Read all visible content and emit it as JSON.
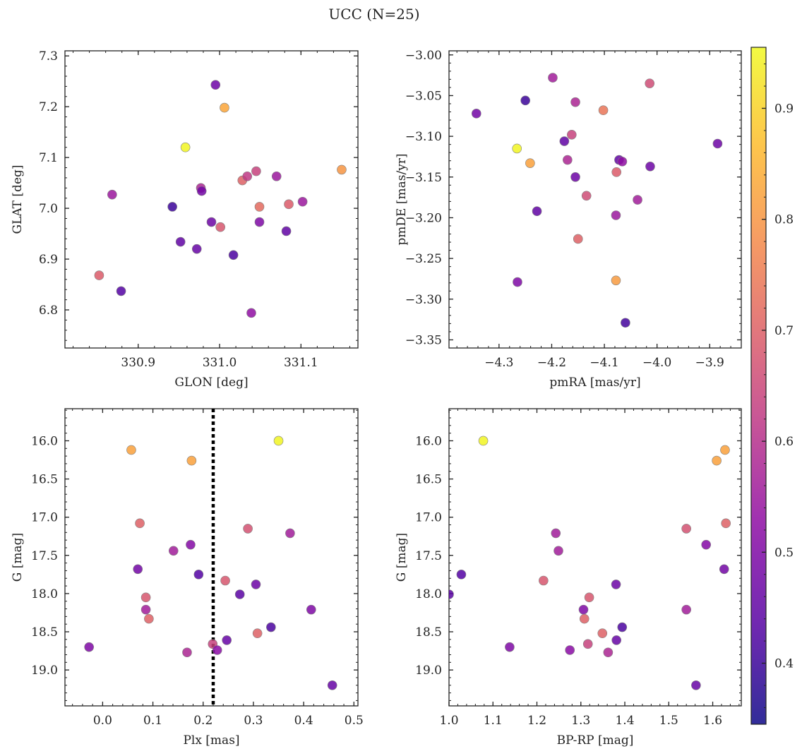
{
  "figure": {
    "title": "UCC (N=25)"
  },
  "colorbar": {
    "colormap": "plasma",
    "range": [
      0.345,
      0.955
    ],
    "ticks": [
      0.4,
      0.5,
      0.6,
      0.7,
      0.8,
      0.9
    ],
    "tick_labels": [
      "0.4",
      "0.5",
      "0.6",
      "0.7",
      "0.8",
      "0.9"
    ],
    "marker_alpha": 0.85
  },
  "chart_data": [
    {
      "type": "scatter",
      "xlabel": "GLON [deg]",
      "ylabel": "GLAT [deg]",
      "xlim": [
        330.81,
        331.17
      ],
      "ylim": [
        6.725,
        7.31
      ],
      "xticks": [
        330.9,
        331.0,
        331.1
      ],
      "xtick_labels": [
        "330.9",
        "331.0",
        "331.1"
      ],
      "yticks": [
        6.8,
        6.9,
        7.0,
        7.1,
        7.2,
        7.3
      ],
      "ytick_labels": [
        "6.8",
        "6.9",
        "7.0",
        "7.1",
        "7.2",
        "7.3"
      ],
      "points": [
        {
          "x": 330.868,
          "y": 7.027,
          "c": 0.55
        },
        {
          "x": 330.852,
          "y": 6.868,
          "c": 0.69
        },
        {
          "x": 330.879,
          "y": 6.837,
          "c": 0.43
        },
        {
          "x": 330.942,
          "y": 7.003,
          "c": 0.4
        },
        {
          "x": 330.952,
          "y": 6.934,
          "c": 0.45
        },
        {
          "x": 330.958,
          "y": 7.12,
          "c": 0.95
        },
        {
          "x": 330.972,
          "y": 6.92,
          "c": 0.46
        },
        {
          "x": 330.977,
          "y": 7.04,
          "c": 0.58
        },
        {
          "x": 330.978,
          "y": 7.034,
          "c": 0.48
        },
        {
          "x": 330.99,
          "y": 6.973,
          "c": 0.47
        },
        {
          "x": 330.995,
          "y": 7.243,
          "c": 0.47
        },
        {
          "x": 331.001,
          "y": 6.963,
          "c": 0.68
        },
        {
          "x": 331.006,
          "y": 7.198,
          "c": 0.83
        },
        {
          "x": 331.017,
          "y": 6.908,
          "c": 0.42
        },
        {
          "x": 331.028,
          "y": 7.055,
          "c": 0.7
        },
        {
          "x": 331.034,
          "y": 7.063,
          "c": 0.62
        },
        {
          "x": 331.039,
          "y": 6.794,
          "c": 0.53
        },
        {
          "x": 331.045,
          "y": 7.073,
          "c": 0.64
        },
        {
          "x": 331.049,
          "y": 7.003,
          "c": 0.72
        },
        {
          "x": 331.049,
          "y": 6.973,
          "c": 0.5
        },
        {
          "x": 331.07,
          "y": 7.063,
          "c": 0.55
        },
        {
          "x": 331.082,
          "y": 6.955,
          "c": 0.45
        },
        {
          "x": 331.085,
          "y": 7.008,
          "c": 0.69
        },
        {
          "x": 331.102,
          "y": 7.013,
          "c": 0.55
        },
        {
          "x": 331.15,
          "y": 7.076,
          "c": 0.8
        }
      ]
    },
    {
      "type": "scatter",
      "xlabel": "pmRA [mas/yr]",
      "ylabel": "pmDE [mas/yr]",
      "xlim": [
        -4.395,
        -3.84
      ],
      "ylim": [
        -3.36,
        -2.995
      ],
      "xticks": [
        -4.3,
        -4.2,
        -4.1,
        -4.0,
        -3.9
      ],
      "xtick_labels": [
        "−4.3",
        "−4.2",
        "−4.1",
        "−4.0",
        "−3.9"
      ],
      "yticks": [
        -3.35,
        -3.3,
        -3.25,
        -3.2,
        -3.15,
        -3.1,
        -3.05,
        -3.0
      ],
      "ytick_labels": [
        "−3.35",
        "−3.30",
        "−3.25",
        "−3.20",
        "−3.15",
        "−3.10",
        "−3.05",
        "−3.00"
      ],
      "points": [
        {
          "x": -4.343,
          "y": -3.072,
          "c": 0.48
        },
        {
          "x": -4.266,
          "y": -3.115,
          "c": 0.95
        },
        {
          "x": -4.265,
          "y": -3.279,
          "c": 0.5
        },
        {
          "x": -4.25,
          "y": -3.056,
          "c": 0.4
        },
        {
          "x": -4.241,
          "y": -3.133,
          "c": 0.82
        },
        {
          "x": -4.228,
          "y": -3.192,
          "c": 0.45
        },
        {
          "x": -4.198,
          "y": -3.028,
          "c": 0.56
        },
        {
          "x": -4.176,
          "y": -3.106,
          "c": 0.45
        },
        {
          "x": -4.17,
          "y": -3.129,
          "c": 0.58
        },
        {
          "x": -4.162,
          "y": -3.098,
          "c": 0.64
        },
        {
          "x": -4.155,
          "y": -3.15,
          "c": 0.47
        },
        {
          "x": -4.155,
          "y": -3.058,
          "c": 0.58
        },
        {
          "x": -4.15,
          "y": -3.226,
          "c": 0.7
        },
        {
          "x": -4.134,
          "y": -3.173,
          "c": 0.66
        },
        {
          "x": -4.102,
          "y": -3.068,
          "c": 0.74
        },
        {
          "x": -4.078,
          "y": -3.277,
          "c": 0.81
        },
        {
          "x": -4.077,
          "y": -3.144,
          "c": 0.69
        },
        {
          "x": -4.078,
          "y": -3.197,
          "c": 0.55
        },
        {
          "x": -4.072,
          "y": -3.129,
          "c": 0.45
        },
        {
          "x": -4.066,
          "y": -3.131,
          "c": 0.53
        },
        {
          "x": -4.06,
          "y": -3.329,
          "c": 0.41
        },
        {
          "x": -4.037,
          "y": -3.178,
          "c": 0.56
        },
        {
          "x": -4.013,
          "y": -3.137,
          "c": 0.47
        },
        {
          "x": -4.014,
          "y": -3.035,
          "c": 0.66
        },
        {
          "x": -3.885,
          "y": -3.109,
          "c": 0.47
        }
      ]
    },
    {
      "type": "scatter",
      "xlabel": "Plx [mas]",
      "ylabel": "G [mag]",
      "xlim": [
        -0.075,
        0.508
      ],
      "ylim": [
        19.47,
        15.58
      ],
      "y_inverted": true,
      "reference_line_x": 0.22,
      "xticks": [
        0.0,
        0.1,
        0.2,
        0.3,
        0.4,
        0.5
      ],
      "xtick_labels": [
        "0.0",
        "0.1",
        "0.2",
        "0.3",
        "0.4",
        "0.5"
      ],
      "yticks": [
        16.0,
        16.5,
        17.0,
        17.5,
        18.0,
        18.5,
        19.0
      ],
      "ytick_labels": [
        "16.0",
        "16.5",
        "17.0",
        "17.5",
        "18.0",
        "18.5",
        "19.0"
      ],
      "points": [
        {
          "x": -0.027,
          "y": 18.7,
          "c": 0.5
        },
        {
          "x": 0.057,
          "y": 16.12,
          "c": 0.82
        },
        {
          "x": 0.074,
          "y": 17.08,
          "c": 0.7
        },
        {
          "x": 0.07,
          "y": 17.68,
          "c": 0.48
        },
        {
          "x": 0.086,
          "y": 18.05,
          "c": 0.68
        },
        {
          "x": 0.086,
          "y": 18.21,
          "c": 0.56
        },
        {
          "x": 0.092,
          "y": 18.33,
          "c": 0.7
        },
        {
          "x": 0.141,
          "y": 17.44,
          "c": 0.56
        },
        {
          "x": 0.168,
          "y": 18.77,
          "c": 0.58
        },
        {
          "x": 0.175,
          "y": 17.36,
          "c": 0.51
        },
        {
          "x": 0.177,
          "y": 16.26,
          "c": 0.82
        },
        {
          "x": 0.191,
          "y": 17.75,
          "c": 0.43
        },
        {
          "x": 0.219,
          "y": 18.66,
          "c": 0.64
        },
        {
          "x": 0.228,
          "y": 18.74,
          "c": 0.52
        },
        {
          "x": 0.244,
          "y": 17.83,
          "c": 0.68
        },
        {
          "x": 0.247,
          "y": 18.61,
          "c": 0.46
        },
        {
          "x": 0.273,
          "y": 18.01,
          "c": 0.44
        },
        {
          "x": 0.289,
          "y": 17.15,
          "c": 0.67
        },
        {
          "x": 0.305,
          "y": 17.88,
          "c": 0.47
        },
        {
          "x": 0.308,
          "y": 18.52,
          "c": 0.7
        },
        {
          "x": 0.335,
          "y": 18.44,
          "c": 0.42
        },
        {
          "x": 0.35,
          "y": 16.0,
          "c": 0.95
        },
        {
          "x": 0.373,
          "y": 17.21,
          "c": 0.56
        },
        {
          "x": 0.415,
          "y": 18.21,
          "c": 0.5
        },
        {
          "x": 0.457,
          "y": 19.2,
          "c": 0.46
        }
      ]
    },
    {
      "type": "scatter",
      "xlabel": "BP-RP [mag]",
      "ylabel": "G [mag]",
      "xlim": [
        1.0,
        1.665
      ],
      "ylim": [
        19.47,
        15.58
      ],
      "y_inverted": true,
      "xticks": [
        1.0,
        1.1,
        1.2,
        1.3,
        1.4,
        1.5,
        1.6
      ],
      "xtick_labels": [
        "1.0",
        "1.1",
        "1.2",
        "1.3",
        "1.4",
        "1.5",
        "1.6"
      ],
      "yticks": [
        16.0,
        16.5,
        17.0,
        17.5,
        18.0,
        18.5,
        19.0
      ],
      "ytick_labels": [
        "16.0",
        "16.5",
        "17.0",
        "17.5",
        "18.0",
        "18.5",
        "19.0"
      ],
      "points": [
        {
          "x": 1.028,
          "y": 17.75,
          "c": 0.43
        },
        {
          "x": 1.078,
          "y": 16.0,
          "c": 0.95
        },
        {
          "x": 1.138,
          "y": 18.7,
          "c": 0.5
        },
        {
          "x": 1.215,
          "y": 17.83,
          "c": 0.68
        },
        {
          "x": 1.243,
          "y": 17.21,
          "c": 0.56
        },
        {
          "x": 1.249,
          "y": 17.44,
          "c": 0.56
        },
        {
          "x": 1.275,
          "y": 18.74,
          "c": 0.52
        },
        {
          "x": 1.306,
          "y": 18.21,
          "c": 0.5
        },
        {
          "x": 1.308,
          "y": 18.33,
          "c": 0.7
        },
        {
          "x": 1.316,
          "y": 18.66,
          "c": 0.64
        },
        {
          "x": 1.319,
          "y": 18.05,
          "c": 0.68
        },
        {
          "x": 1.349,
          "y": 18.52,
          "c": 0.7
        },
        {
          "x": 1.362,
          "y": 18.77,
          "c": 0.58
        },
        {
          "x": 1.38,
          "y": 17.88,
          "c": 0.47
        },
        {
          "x": 1.381,
          "y": 18.61,
          "c": 0.46
        },
        {
          "x": 1.394,
          "y": 18.44,
          "c": 0.42
        },
        {
          "x": 1.54,
          "y": 17.15,
          "c": 0.67
        },
        {
          "x": 1.54,
          "y": 18.21,
          "c": 0.56
        },
        {
          "x": 1.562,
          "y": 19.2,
          "c": 0.46
        },
        {
          "x": 1.585,
          "y": 17.36,
          "c": 0.51
        },
        {
          "x": 1.609,
          "y": 16.26,
          "c": 0.82
        },
        {
          "x": 1.626,
          "y": 17.68,
          "c": 0.48
        },
        {
          "x": 1.628,
          "y": 16.12,
          "c": 0.82
        },
        {
          "x": 1.63,
          "y": 17.08,
          "c": 0.7
        },
        {
          "x": 1.0,
          "y": 18.01,
          "c": 0.44
        }
      ]
    }
  ]
}
